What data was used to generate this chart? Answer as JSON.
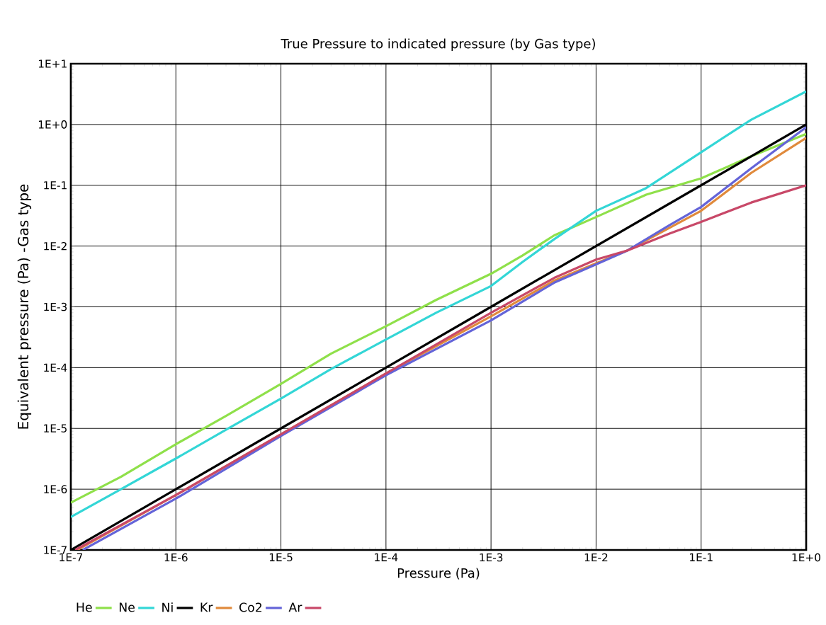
{
  "chart_data": {
    "type": "line",
    "title": "True Pressure to indicated pressure (by Gas type)",
    "xlabel": "Pressure (Pa)",
    "ylabel": "Equivalent pressure (Pa) -Gas type",
    "log": "xy",
    "grid": true,
    "legend": "bottom",
    "xlim": [
      1e-07,
      1
    ],
    "ylim": [
      1e-07,
      10
    ],
    "xticks": [
      {
        "value": 1e-07,
        "label": "1E-7"
      },
      {
        "value": 1e-06,
        "label": "1E-6"
      },
      {
        "value": 1e-05,
        "label": "1E-5"
      },
      {
        "value": 0.0001,
        "label": "1E-4"
      },
      {
        "value": 0.001,
        "label": "1E-3"
      },
      {
        "value": 0.01,
        "label": "1E-2"
      },
      {
        "value": 0.1,
        "label": "1E-1"
      },
      {
        "value": 1,
        "label": "1E+0"
      }
    ],
    "yticks": [
      {
        "value": 1e-07,
        "label": "1E-7"
      },
      {
        "value": 1e-06,
        "label": "1E-6"
      },
      {
        "value": 1e-05,
        "label": "1E-5"
      },
      {
        "value": 0.0001,
        "label": "1E-4"
      },
      {
        "value": 0.001,
        "label": "1E-3"
      },
      {
        "value": 0.01,
        "label": "1E-2"
      },
      {
        "value": 0.1,
        "label": "1E-1"
      },
      {
        "value": 1,
        "label": "1E+0"
      },
      {
        "value": 10,
        "label": "1E+1"
      }
    ],
    "series": [
      {
        "name": "He",
        "color": "#8fe04a",
        "x": [
          1e-07,
          3e-07,
          1e-06,
          3e-06,
          1e-05,
          3e-05,
          0.0001,
          0.0003,
          0.001,
          0.002,
          0.004,
          0.01,
          0.03,
          0.1,
          0.3,
          1
        ],
        "values": [
          6e-07,
          1.6e-06,
          5.5e-06,
          1.6e-05,
          5.4e-05,
          0.00017,
          0.00048,
          0.0013,
          0.0035,
          0.007,
          0.015,
          0.03,
          0.07,
          0.13,
          0.3,
          0.7
        ]
      },
      {
        "name": "Ne",
        "color": "#33d6d6",
        "x": [
          1e-07,
          3e-07,
          1e-06,
          3e-06,
          1e-05,
          3e-05,
          0.0001,
          0.0003,
          0.001,
          0.002,
          0.004,
          0.01,
          0.03,
          0.1,
          0.3,
          1
        ],
        "values": [
          3.5e-07,
          1e-06,
          3.2e-06,
          9.5e-06,
          3.1e-05,
          9.5e-05,
          0.00029,
          0.0008,
          0.0022,
          0.0055,
          0.013,
          0.038,
          0.09,
          0.35,
          1.2,
          3.5
        ]
      },
      {
        "name": "Ni",
        "color": "#000000",
        "x": [
          1e-07,
          1e-06,
          1e-05,
          0.0001,
          0.001,
          0.01,
          0.1,
          1
        ],
        "values": [
          1e-07,
          1e-06,
          1e-05,
          0.0001,
          0.001,
          0.01,
          0.1,
          1
        ]
      },
      {
        "name": "Kr",
        "color": "#e08a3c",
        "x": [
          1.15e-07,
          1e-06,
          1e-05,
          0.0001,
          0.001,
          0.004,
          0.01,
          0.02,
          0.05,
          0.1,
          0.3,
          1
        ],
        "values": [
          1e-07,
          8e-07,
          8e-06,
          8e-05,
          0.0007,
          0.0027,
          0.0052,
          0.0085,
          0.02,
          0.038,
          0.16,
          0.6
        ]
      },
      {
        "name": "Co2",
        "color": "#6464d8",
        "x": [
          1.3e-07,
          1e-06,
          1e-05,
          0.0001,
          0.001,
          0.004,
          0.01,
          0.02,
          0.05,
          0.1,
          0.3,
          1
        ],
        "values": [
          1e-07,
          7e-07,
          7.5e-06,
          7.5e-05,
          0.0006,
          0.0025,
          0.005,
          0.0085,
          0.022,
          0.044,
          0.19,
          0.9
        ]
      },
      {
        "name": "Ar",
        "color": "#c84868",
        "x": [
          1.1e-07,
          1e-06,
          1e-05,
          0.0001,
          0.001,
          0.004,
          0.01,
          0.02,
          0.05,
          0.1,
          0.3,
          1
        ],
        "values": [
          1e-07,
          8e-07,
          8e-06,
          8e-05,
          0.0008,
          0.003,
          0.006,
          0.0085,
          0.016,
          0.025,
          0.052,
          0.1
        ]
      }
    ]
  }
}
